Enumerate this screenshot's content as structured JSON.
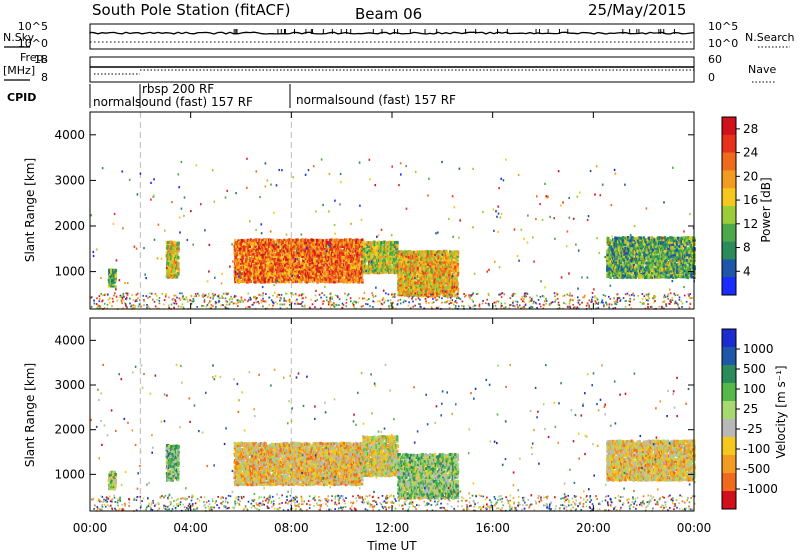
{
  "header": {
    "station": "South Pole Station (fitACF)",
    "beam": "Beam 06",
    "date": "25/May/2015"
  },
  "side_labels": {
    "nsky": "N.Sky",
    "nsearch": "N.Search",
    "freq_line1": "Freq.",
    "freq_line2": "[MHz]",
    "nave": "Nave",
    "cpid": "CPID"
  },
  "aux_ticks": {
    "nsky_left": [
      "10^5",
      "10^0"
    ],
    "nsky_right": [
      "10^5",
      "10^0"
    ],
    "freq_left": [
      "18",
      "8"
    ],
    "nave_right": [
      "60",
      "0"
    ]
  },
  "cpid_labels": {
    "a": "normalsound (fast) 157 RF",
    "b": "rbsp 200 RF",
    "c": "normalsound (fast) 157 RF"
  },
  "xaxis": {
    "label": "Time UT",
    "ticks": [
      "00:00",
      "04:00",
      "08:00",
      "12:00",
      "16:00",
      "20:00",
      "00:00"
    ]
  },
  "power_panel": {
    "ylabel": "Slant Range [km]",
    "yticks": [
      "1000",
      "2000",
      "3000",
      "4000"
    ],
    "colorbar_title": "Power [dB]",
    "colorbar_ticks": [
      "4",
      "8",
      "12",
      "16",
      "20",
      "24",
      "28"
    ],
    "colors": [
      "#1a2cff",
      "#1f57a8",
      "#2a8c5a",
      "#4da84a",
      "#9bcc3a",
      "#f4c81e",
      "#f29b22",
      "#ef6a1c",
      "#e6321a",
      "#d0101a"
    ]
  },
  "velocity_panel": {
    "ylabel": "Slant Range [km]",
    "yticks": [
      "1000",
      "2000",
      "3000",
      "4000"
    ],
    "colorbar_title": "Velocity [m s⁻¹]",
    "colorbar_ticks": [
      "1000",
      "500",
      "100",
      "25",
      "-25",
      "-100",
      "-500",
      "-1000"
    ],
    "colors": [
      "#1a2cd0",
      "#1f57a8",
      "#2a8c5a",
      "#55b84a",
      "#a8d870",
      "#b8b8b8",
      "#f4c81e",
      "#f29b22",
      "#ef6a1c",
      "#d0101a"
    ]
  },
  "chart_data": {
    "type": "heatmap",
    "title": "South Pole Station (fitACF)",
    "xlabel": "Time UT",
    "xlim_hours": [
      0,
      24
    ],
    "ylabel": "Slant Range [km]",
    "ylim": [
      180,
      4500
    ],
    "panels": [
      {
        "name": "Power",
        "unit": "dB",
        "zlim": [
          0,
          30
        ],
        "echo_regions": [
          {
            "t0": 0.7,
            "t1": 1.0,
            "r0": 700,
            "r1": 1100,
            "value": 10
          },
          {
            "t0": 3.0,
            "t1": 3.5,
            "r0": 900,
            "r1": 1700,
            "value": 16
          },
          {
            "t0": 5.7,
            "t1": 10.8,
            "r0": 800,
            "r1": 1750,
            "value": 22
          },
          {
            "t0": 10.8,
            "t1": 12.2,
            "r0": 1000,
            "r1": 1700,
            "value": 14
          },
          {
            "t0": 12.2,
            "t1": 14.6,
            "r0": 500,
            "r1": 1500,
            "value": 18
          },
          {
            "t0": 20.5,
            "t1": 24.0,
            "r0": 900,
            "r1": 1800,
            "value": 10
          }
        ]
      },
      {
        "name": "Velocity",
        "unit": "m/s",
        "zlim": [
          -1000,
          1000
        ],
        "echo_regions": [
          {
            "t0": 0.7,
            "t1": 1.0,
            "r0": 700,
            "r1": 1100,
            "value": 50
          },
          {
            "t0": 3.0,
            "t1": 3.5,
            "r0": 900,
            "r1": 1700,
            "value": 200
          },
          {
            "t0": 5.7,
            "t1": 10.8,
            "r0": 800,
            "r1": 1750,
            "value": -300
          },
          {
            "t0": 10.8,
            "t1": 12.2,
            "r0": 1000,
            "r1": 1900,
            "value": -150
          },
          {
            "t0": 12.2,
            "t1": 14.6,
            "r0": 500,
            "r1": 1500,
            "value": 150
          },
          {
            "t0": 20.5,
            "t1": 24.0,
            "r0": 900,
            "r1": 1800,
            "value": -250
          }
        ]
      }
    ]
  }
}
